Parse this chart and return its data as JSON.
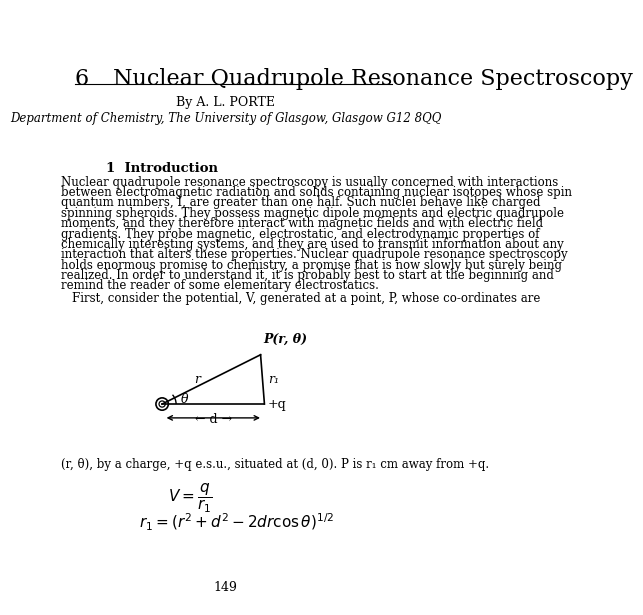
{
  "bg_color": "#ffffff",
  "chapter_num": "6",
  "chapter_title": "Nuclear Quadrupole Resonance Spectroscopy",
  "author": "By A. L. PORTE",
  "affiliation": "Department of Chemistry, The University of Glasgow, Glasgow G12 8QQ",
  "section": "1  Introduction",
  "paragraph1_lines": [
    "Nuclear quadrupole resonance spectroscopy is usually concerned with interactions",
    "between electromagnetic radiation and solids containing nuclear isotopes whose spin",
    "quantum numbers, I, are greater than one half. Such nuclei behave like charged",
    "spinning spheroids. They possess magnetic dipole moments and electric quadrupole",
    "moments, and they therefore interact with magnetic fields and with electric field",
    "gradients. They probe magnetic, electrostatic, and electrodynamic properties of",
    "chemically interesting systems, and they are used to transmit information about any",
    "interaction that alters these properties. Nuclear quadrupole resonance spectroscopy",
    "holds enormous promise to chemistry, a promise that is now slowly but surely being",
    "realized. In order to understand it, it is probably best to start at the beginning and",
    "remind the reader of some elementary electrostatics."
  ],
  "paragraph2": "First, consider the potential, V, generated at a point, P, whose co-ordinates are",
  "caption": "(r, θ), by a charge, +q e.s.u., situated at (d, 0). P is r₁ cm away from +q.",
  "page_num": "149",
  "fig_label_P": "P(r, θ)",
  "fig_label_r": "r",
  "fig_label_r1": "r₁",
  "fig_label_theta": "θ",
  "fig_label_q": "+q",
  "fig_label_d": "← d →"
}
